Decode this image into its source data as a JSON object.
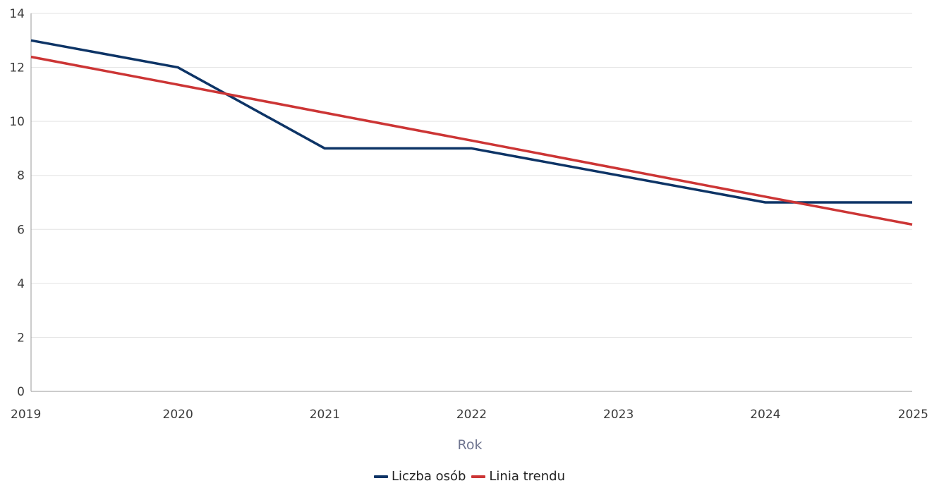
{
  "chart_data": {
    "type": "line",
    "title": "",
    "xlabel": "Rok",
    "ylabel": "",
    "x": [
      "2019",
      "2020",
      "2021",
      "2022",
      "2023",
      "2024",
      "2025"
    ],
    "ylim": [
      0,
      14
    ],
    "yticks": [
      "0",
      "2",
      "4",
      "6",
      "8",
      "10",
      "12",
      "14"
    ],
    "grid": true,
    "legend_position": "bottom-center",
    "series": [
      {
        "name": "Liczba osób",
        "color": "#0d3466",
        "values": [
          13,
          12,
          9,
          9,
          8,
          7,
          7
        ]
      },
      {
        "name": "Linia trendu",
        "color": "#cc3535",
        "values": [
          12.39,
          11.36,
          10.32,
          9.29,
          8.25,
          7.21,
          6.18
        ]
      }
    ]
  }
}
